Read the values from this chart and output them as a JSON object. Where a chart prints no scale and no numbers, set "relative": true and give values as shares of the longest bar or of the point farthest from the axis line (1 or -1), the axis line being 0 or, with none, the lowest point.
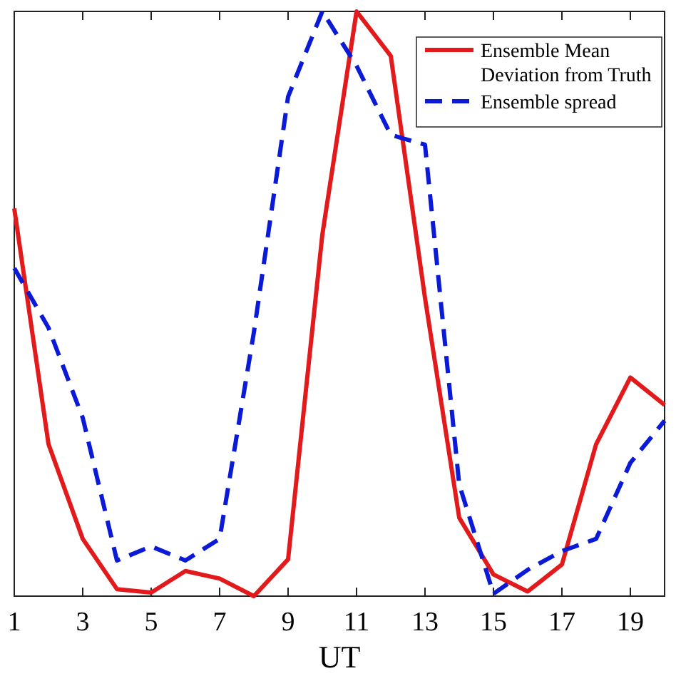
{
  "chart_data": {
    "type": "line",
    "xlabel": "UT",
    "relative": true,
    "x": [
      1,
      2,
      3,
      4,
      5,
      6,
      7,
      8,
      9,
      10,
      11,
      12,
      13,
      14,
      15,
      16,
      17,
      18,
      19,
      20
    ],
    "xlim": [
      1,
      20
    ],
    "xticks": [
      1,
      3,
      5,
      7,
      9,
      11,
      13,
      15,
      17,
      19
    ],
    "grid": false,
    "legend": "top right",
    "series": [
      {
        "name": "Ensemble Mean Deviation from Truth",
        "color": "#e31a1c",
        "line_style": "solid",
        "values": [
          0.663,
          0.26,
          0.098,
          0.012,
          0.006,
          0.043,
          0.03,
          0,
          0.063,
          0.618,
          1,
          0.924,
          0.51,
          0.134,
          0.037,
          0.008,
          0.054,
          0.26,
          0.374,
          0.327
        ]
      },
      {
        "name": "Ensemble spread",
        "color": "#0a1ad6",
        "line_style": "dashed",
        "values": [
          0.561,
          0.459,
          0.305,
          0.061,
          0.085,
          0.061,
          0.098,
          0.451,
          0.854,
          1,
          0.907,
          0.789,
          0.772,
          0.191,
          0.004,
          0.045,
          0.077,
          0.098,
          0.228,
          0.3
        ]
      }
    ]
  }
}
